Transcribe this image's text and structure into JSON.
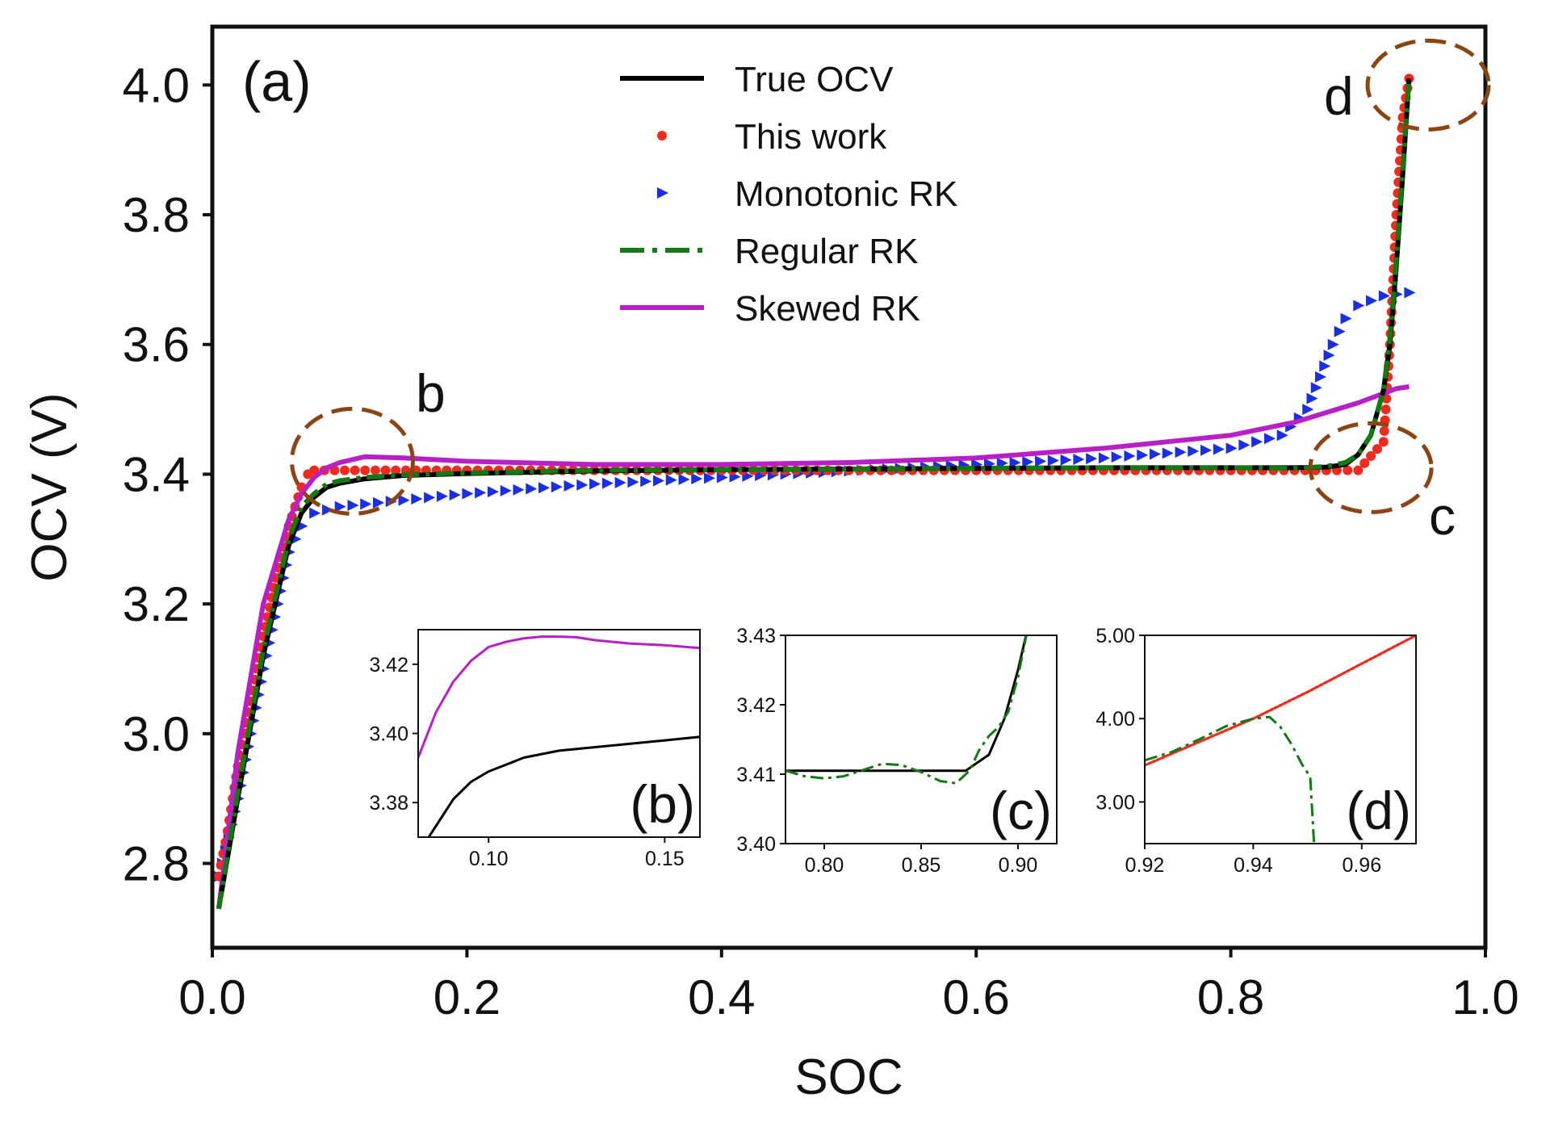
{
  "chart_data": {
    "type": "line",
    "panel_label": "(a)",
    "xlabel": "SOC",
    "ylabel": "OCV (V)",
    "xlim": [
      0.0,
      1.0
    ],
    "ylim": [
      2.67,
      4.09
    ],
    "xticks": [
      "0.0",
      "0.2",
      "0.4",
      "0.6",
      "0.8",
      "1.0"
    ],
    "yticks": [
      "2.8",
      "3.0",
      "3.2",
      "3.4",
      "3.6",
      "3.8",
      "4.0"
    ],
    "grid": false,
    "legend_position": "top-center",
    "colors": {
      "true_ocv": "#000000",
      "this_work": "#f02a1c",
      "monotonic_rk": "#1a2ee6",
      "regular_rk": "#137a13",
      "skewed_rk": "#b81fc7",
      "highlight_circle": "#8b4513"
    },
    "legend": [
      {
        "label": "True OCV",
        "marker": "solid-line"
      },
      {
        "label": "This work",
        "marker": "dot"
      },
      {
        "label": "Monotonic RK",
        "marker": "triangle-right"
      },
      {
        "label": "Regular RK",
        "marker": "dash-dot-line"
      },
      {
        "label": "Skewed RK",
        "marker": "solid-line"
      }
    ],
    "highlights": [
      {
        "label": "b",
        "center": [
          0.11,
          3.42
        ]
      },
      {
        "label": "c",
        "center": [
          0.91,
          3.41
        ]
      },
      {
        "label": "d",
        "center": [
          0.955,
          4.0
        ]
      }
    ],
    "series": [
      {
        "name": "True OCV",
        "style": "line",
        "x": [
          0.005,
          0.02,
          0.04,
          0.06,
          0.07,
          0.08,
          0.09,
          0.1,
          0.12,
          0.15,
          0.2,
          0.3,
          0.4,
          0.5,
          0.6,
          0.7,
          0.8,
          0.85,
          0.875,
          0.89,
          0.9,
          0.91,
          0.92,
          0.925,
          0.93,
          0.935,
          0.94
        ],
        "y": [
          2.73,
          2.9,
          3.12,
          3.29,
          3.34,
          3.365,
          3.38,
          3.386,
          3.393,
          3.398,
          3.401,
          3.405,
          3.407,
          3.408,
          3.409,
          3.41,
          3.41,
          3.41,
          3.411,
          3.415,
          3.43,
          3.46,
          3.53,
          3.6,
          3.72,
          3.86,
          4.01
        ]
      },
      {
        "name": "This work",
        "style": "dots",
        "x": [
          0.005,
          0.012,
          0.02,
          0.03,
          0.04,
          0.05,
          0.06,
          0.065,
          0.07,
          0.075,
          0.08,
          0.2,
          0.3,
          0.4,
          0.5,
          0.6,
          0.7,
          0.8,
          0.9,
          0.92,
          0.925,
          0.93,
          0.935,
          0.94
        ],
        "y": [
          2.78,
          2.85,
          2.95,
          3.05,
          3.15,
          3.24,
          3.32,
          3.35,
          3.38,
          3.4,
          3.406,
          3.406,
          3.406,
          3.406,
          3.406,
          3.406,
          3.406,
          3.406,
          3.406,
          3.45,
          3.6,
          3.8,
          3.95,
          4.01
        ]
      },
      {
        "name": "Monotonic RK",
        "style": "triangles",
        "x": [
          0.005,
          0.02,
          0.04,
          0.06,
          0.07,
          0.08,
          0.1,
          0.2,
          0.3,
          0.4,
          0.5,
          0.6,
          0.7,
          0.8,
          0.84,
          0.86,
          0.87,
          0.88,
          0.89,
          0.9,
          0.92,
          0.94
        ],
        "y": [
          2.78,
          2.9,
          3.1,
          3.28,
          3.32,
          3.34,
          3.35,
          3.37,
          3.385,
          3.395,
          3.405,
          3.415,
          3.425,
          3.44,
          3.46,
          3.5,
          3.55,
          3.6,
          3.64,
          3.66,
          3.675,
          3.68
        ]
      },
      {
        "name": "Regular RK",
        "style": "dashdot",
        "x": [
          0.005,
          0.02,
          0.04,
          0.06,
          0.07,
          0.08,
          0.09,
          0.1,
          0.12,
          0.15,
          0.2,
          0.3,
          0.4,
          0.5,
          0.6,
          0.7,
          0.8,
          0.85,
          0.875,
          0.89,
          0.9,
          0.91,
          0.92,
          0.925,
          0.93,
          0.935,
          0.94
        ],
        "y": [
          2.73,
          2.91,
          3.13,
          3.3,
          3.35,
          3.37,
          3.385,
          3.39,
          3.395,
          3.399,
          3.402,
          3.406,
          3.407,
          3.408,
          3.409,
          3.41,
          3.41,
          3.409,
          3.412,
          3.418,
          3.43,
          3.46,
          3.53,
          3.61,
          3.73,
          3.87,
          4.01
        ]
      },
      {
        "name": "Skewed RK",
        "style": "line",
        "x": [
          0.005,
          0.02,
          0.04,
          0.06,
          0.07,
          0.08,
          0.09,
          0.1,
          0.12,
          0.15,
          0.2,
          0.3,
          0.4,
          0.5,
          0.6,
          0.7,
          0.8,
          0.85,
          0.9,
          0.93,
          0.94
        ],
        "y": [
          2.73,
          2.97,
          3.2,
          3.33,
          3.37,
          3.395,
          3.41,
          3.418,
          3.427,
          3.425,
          3.42,
          3.415,
          3.415,
          3.418,
          3.425,
          3.44,
          3.46,
          3.48,
          3.51,
          3.532,
          3.535
        ]
      }
    ],
    "insets": [
      {
        "label": "(b)",
        "xlim": [
          0.08,
          0.16
        ],
        "ylim": [
          3.37,
          3.43
        ],
        "xticks": [
          "0.10",
          "0.15"
        ],
        "xtick_values": [
          0.1,
          0.15
        ],
        "yticks": [
          "3.38",
          "3.40",
          "3.42"
        ],
        "ytick_values": [
          3.38,
          3.4,
          3.42
        ],
        "series": [
          {
            "name": "Skewed RK",
            "style": "line",
            "x": [
              0.08,
              0.085,
              0.09,
              0.095,
              0.1,
              0.105,
              0.11,
              0.115,
              0.12,
              0.125,
              0.13,
              0.14,
              0.15,
              0.16
            ],
            "y": [
              3.393,
              3.406,
              3.415,
              3.421,
              3.425,
              3.4265,
              3.4275,
              3.428,
              3.428,
              3.4278,
              3.427,
              3.426,
              3.4255,
              3.4247
            ]
          },
          {
            "name": "True OCV",
            "style": "line",
            "x": [
              0.083,
              0.09,
              0.095,
              0.1,
              0.105,
              0.11,
              0.12,
              0.13,
              0.14,
              0.15,
              0.16
            ],
            "y": [
              3.37,
              3.381,
              3.386,
              3.389,
              3.391,
              3.393,
              3.395,
              3.396,
              3.397,
              3.398,
              3.399
            ]
          }
        ]
      },
      {
        "label": "(c)",
        "xlim": [
          0.78,
          0.92
        ],
        "ylim": [
          3.4,
          3.43
        ],
        "xticks": [
          "0.80",
          "0.85",
          "0.90"
        ],
        "xtick_values": [
          0.8,
          0.85,
          0.9
        ],
        "yticks": [
          "3.40",
          "3.41",
          "3.42",
          "3.43"
        ],
        "ytick_values": [
          3.4,
          3.41,
          3.42,
          3.43
        ],
        "series": [
          {
            "name": "True OCV",
            "style": "line",
            "x": [
              0.78,
              0.8,
              0.85,
              0.873,
              0.885,
              0.893,
              0.9,
              0.905
            ],
            "y": [
              3.4105,
              3.4105,
              3.4105,
              3.4105,
              3.4128,
              3.418,
              3.425,
              3.431
            ]
          },
          {
            "name": "Regular RK",
            "style": "dashdot",
            "x": [
              0.78,
              0.79,
              0.8,
              0.81,
              0.82,
              0.83,
              0.84,
              0.85,
              0.86,
              0.868,
              0.875,
              0.88,
              0.885,
              0.89,
              0.895,
              0.9,
              0.905
            ],
            "y": [
              3.4105,
              3.4097,
              3.4094,
              3.4097,
              3.4106,
              3.4115,
              3.4113,
              3.4103,
              3.409,
              3.4087,
              3.4105,
              3.4135,
              3.4155,
              3.4168,
              3.419,
              3.424,
              3.431
            ]
          }
        ]
      },
      {
        "label": "(d)",
        "xlim": [
          0.92,
          0.97
        ],
        "ylim": [
          2.5,
          5.0
        ],
        "xticks": [
          "0.92",
          "0.94",
          "0.96"
        ],
        "xtick_values": [
          0.92,
          0.94,
          0.96
        ],
        "yticks": [
          "3.00",
          "4.00",
          "5.00"
        ],
        "ytick_values": [
          3.0,
          4.0,
          5.0
        ],
        "series": [
          {
            "name": "This work",
            "style": "dotline",
            "x": [
              0.92,
              0.93,
              0.94,
              0.95,
              0.96,
              0.97
            ],
            "y": [
              3.44,
              3.72,
              4.0,
              4.32,
              4.66,
              5.0
            ]
          },
          {
            "name": "Regular RK",
            "style": "dashdot",
            "x": [
              0.92,
              0.925,
              0.93,
              0.935,
              0.94,
              0.943,
              0.945,
              0.947,
              0.949,
              0.9505,
              0.9512
            ],
            "y": [
              3.5,
              3.6,
              3.75,
              3.91,
              4.0,
              4.02,
              3.9,
              3.7,
              3.45,
              3.3,
              2.5
            ]
          }
        ]
      }
    ]
  }
}
